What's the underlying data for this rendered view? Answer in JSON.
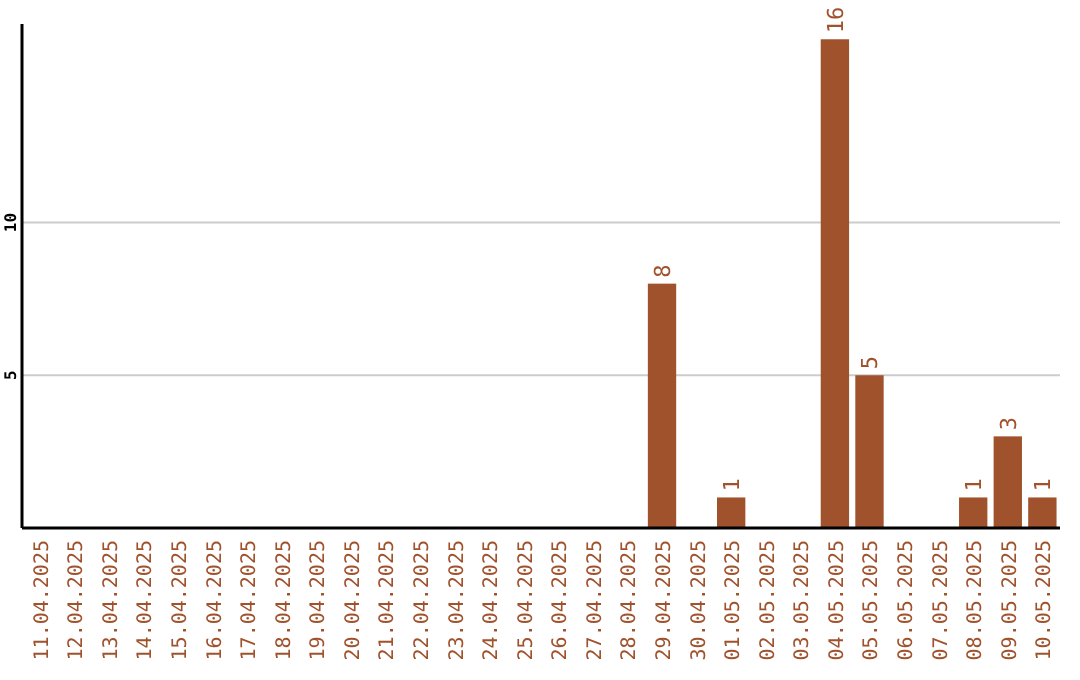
{
  "chart_data": {
    "type": "bar",
    "categories": [
      "11.04.2025",
      "12.04.2025",
      "13.04.2025",
      "14.04.2025",
      "15.04.2025",
      "16.04.2025",
      "17.04.2025",
      "18.04.2025",
      "19.04.2025",
      "20.04.2025",
      "21.04.2025",
      "22.04.2025",
      "23.04.2025",
      "24.04.2025",
      "25.04.2025",
      "26.04.2025",
      "27.04.2025",
      "28.04.2025",
      "29.04.2025",
      "30.04.2025",
      "01.05.2025",
      "02.05.2025",
      "03.05.2025",
      "04.05.2025",
      "05.05.2025",
      "06.05.2025",
      "07.05.2025",
      "08.05.2025",
      "09.05.2025",
      "10.05.2025"
    ],
    "values": [
      0,
      0,
      0,
      0,
      0,
      0,
      0,
      0,
      0,
      0,
      0,
      0,
      0,
      0,
      0,
      0,
      0,
      0,
      8,
      0,
      1,
      0,
      0,
      16,
      5,
      0,
      0,
      1,
      3,
      1
    ],
    "value_labels": [
      null,
      null,
      null,
      null,
      null,
      null,
      null,
      null,
      null,
      null,
      null,
      null,
      null,
      null,
      null,
      null,
      null,
      null,
      "8",
      null,
      "1",
      null,
      null,
      "16",
      "5",
      null,
      null,
      "1",
      "3",
      "1"
    ],
    "color": "#a0522d",
    "ylim": [
      0,
      16.5
    ],
    "yticks": [
      5,
      10
    ],
    "grid": "y"
  }
}
